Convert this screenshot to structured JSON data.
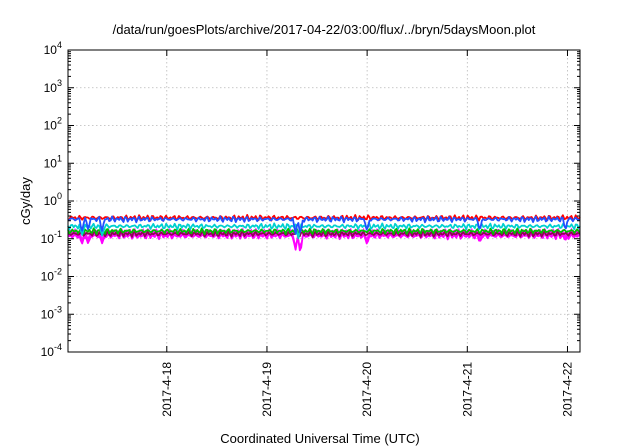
{
  "chart_data": {
    "type": "line",
    "title": "/data/run/goesPlots/archive/2017-04-22/03:00/flux/../bryn/5daysMoon.plot",
    "xlabel": "Coordinated Universal Time (UTC)",
    "ylabel": "cGy/day",
    "xlim": [
      "2017-04-17T00:20:00Z",
      "2017-04-22T03:00:00Z"
    ],
    "ylim": [
      0.0001,
      10000
    ],
    "yscale": "log",
    "grid": true,
    "legend": "none",
    "x_ticks": [
      {
        "t": "2017-04-18T00:00:00Z",
        "label": "2017-4-18"
      },
      {
        "t": "2017-04-19T00:00:00Z",
        "label": "2017-4-19"
      },
      {
        "t": "2017-04-20T00:00:00Z",
        "label": "2017-4-20"
      },
      {
        "t": "2017-04-21T00:00:00Z",
        "label": "2017-4-21"
      },
      {
        "t": "2017-04-22T00:00:00Z",
        "label": "2017-4-22"
      }
    ],
    "y_ticks": [
      {
        "value": 0.0001,
        "base": "10",
        "exp": "-4"
      },
      {
        "value": 0.001,
        "base": "10",
        "exp": "-3"
      },
      {
        "value": 0.01,
        "base": "10",
        "exp": "-2"
      },
      {
        "value": 0.1,
        "base": "10",
        "exp": "-1"
      },
      {
        "value": 1,
        "base": "10",
        "exp": "0"
      },
      {
        "value": 10,
        "base": "10",
        "exp": "1"
      },
      {
        "value": 100,
        "base": "10",
        "exp": "2"
      },
      {
        "value": 1000,
        "base": "10",
        "exp": "3"
      },
      {
        "value": 10000,
        "base": "10",
        "exp": "4"
      }
    ],
    "series": [
      {
        "color": "#ff00ff",
        "fill": true,
        "base_value": 0.118,
        "dips": [
          [
            "2017-04-17T03:40:00Z",
            0.07
          ],
          [
            "2017-04-17T05:10:00Z",
            0.072
          ],
          [
            "2017-04-17T08:30:00Z",
            0.075
          ],
          [
            "2017-04-19T06:50:00Z",
            0.05
          ],
          [
            "2017-04-19T08:00:00Z",
            0.04
          ],
          [
            "2017-04-20T00:00:00Z",
            0.07
          ],
          [
            "2017-04-21T03:00:00Z",
            0.08
          ],
          [
            "2017-04-21T23:30:00Z",
            0.09
          ]
        ]
      },
      {
        "color": "#8b0a50",
        "fill": false,
        "base_value": 0.135,
        "dips": []
      },
      {
        "color": "#00c000",
        "fill": false,
        "base_value": 0.16,
        "dips": []
      },
      {
        "color": "#00d0d0",
        "fill": false,
        "base_value": 0.215,
        "dips": [
          [
            "2017-04-17T03:40:00Z",
            0.12
          ],
          [
            "2017-04-17T08:30:00Z",
            0.12
          ],
          [
            "2017-04-19T07:30:00Z",
            0.1
          ]
        ]
      },
      {
        "color": "#ff0000",
        "fill": false,
        "base_value": 0.36,
        "dips": []
      },
      {
        "color": "#2050ff",
        "fill": false,
        "base_value": 0.33,
        "dips": [
          [
            "2017-04-17T03:40:00Z",
            0.15
          ],
          [
            "2017-04-17T05:10:00Z",
            0.17
          ],
          [
            "2017-04-17T08:30:00Z",
            0.16
          ],
          [
            "2017-04-19T06:50:00Z",
            0.13
          ],
          [
            "2017-04-19T08:00:00Z",
            0.12
          ],
          [
            "2017-04-20T00:00:00Z",
            0.15
          ],
          [
            "2017-04-21T03:00:00Z",
            0.16
          ],
          [
            "2017-04-21T23:30:00Z",
            0.17
          ]
        ]
      }
    ]
  }
}
